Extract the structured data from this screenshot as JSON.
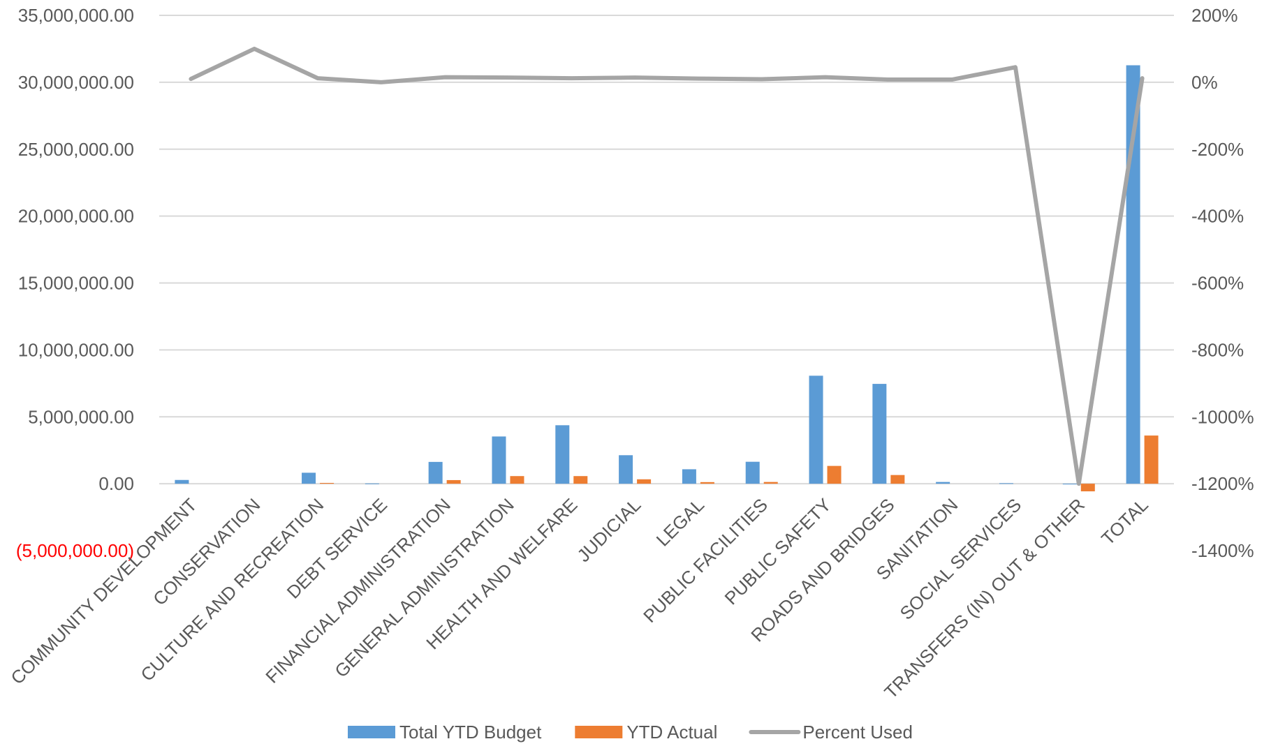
{
  "chart_data": {
    "type": "bar",
    "categories": [
      "COMMUNITY DEVELOPMENT",
      "CONSERVATION",
      "CULTURE AND RECREATION",
      "DEBT SERVICE",
      "FINANCIAL ADMINISTRATION",
      "GENERAL ADMINISTRATION",
      "HEALTH AND WELFARE",
      "JUDICIAL",
      "LEGAL",
      "PUBLIC FACILITIES",
      "PUBLIC SAFETY",
      "ROADS AND BRIDGES",
      "SANITATION",
      "SOCIAL SERVICES",
      "TRANSFERS (IN) OUT & OTHER",
      "TOTAL"
    ],
    "series": [
      {
        "name": "Total YTD Budget",
        "type": "bar",
        "axis": "left",
        "color": "#5b9bd5",
        "values": [
          280000,
          0,
          820000,
          20000,
          1630000,
          3530000,
          4370000,
          2130000,
          1080000,
          1640000,
          8070000,
          7460000,
          130000,
          40000,
          -50000,
          31270000
        ]
      },
      {
        "name": "YTD Actual",
        "type": "bar",
        "axis": "left",
        "color": "#ed7d31",
        "values": [
          0,
          0,
          60000,
          0,
          270000,
          570000,
          570000,
          330000,
          120000,
          130000,
          1330000,
          650000,
          0,
          0,
          -570000,
          3600000
        ]
      },
      {
        "name": "Percent Used",
        "type": "line",
        "axis": "right",
        "color": "#a5a5a5",
        "values": [
          10,
          100,
          12,
          0,
          15,
          14,
          12,
          14,
          11,
          9,
          15,
          8,
          8,
          45,
          -1200,
          12
        ]
      }
    ],
    "y_left": {
      "min": -5000000,
      "max": 35000000,
      "step": 5000000,
      "tick_labels": [
        "(5,000,000.00)",
        "0.00",
        "5,000,000.00",
        "10,000,000.00",
        "15,000,000.00",
        "20,000,000.00",
        "25,000,000.00",
        "30,000,000.00",
        "35,000,000.00"
      ],
      "negative_label_color": "#ff0000"
    },
    "y_right": {
      "min": -1400,
      "max": 200,
      "step": 200,
      "tick_labels": [
        "-1400%",
        "-1200%",
        "-1000%",
        "-800%",
        "-600%",
        "-400%",
        "-200%",
        "0%",
        "200%"
      ]
    },
    "grid": true,
    "legend": "bottom",
    "colors": {
      "gridline": "#d9d9d9",
      "text": "#595959"
    }
  }
}
